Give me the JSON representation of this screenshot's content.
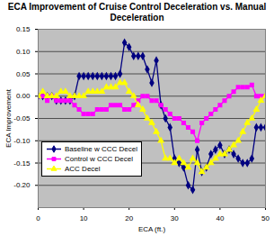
{
  "chart_data": {
    "type": "line",
    "title": "ECA Improvement of Cruise Control Deceleration vs. Manual Deceleration",
    "x_label": "ECA (ft.)",
    "y_label": "ECA Improvement",
    "x": [
      0,
      1,
      2,
      3,
      4,
      5,
      6,
      7,
      8,
      9,
      10,
      11,
      12,
      13,
      14,
      15,
      16,
      17,
      18,
      19,
      20,
      21,
      22,
      23,
      24,
      25,
      26,
      27,
      28,
      29,
      30,
      31,
      32,
      33,
      34,
      35,
      36,
      37,
      38,
      39,
      40,
      41,
      42,
      43,
      44,
      45,
      46,
      47,
      48,
      49,
      50
    ],
    "series": [
      {
        "name": "Baseline w CCC Decel",
        "color": "#000080",
        "marker": "diamond",
        "values": [
          0.0,
          0.0,
          0.0,
          0.0,
          -0.01,
          -0.01,
          -0.01,
          -0.01,
          0.0,
          0.045,
          0.045,
          0.045,
          0.045,
          0.045,
          0.045,
          0.045,
          0.045,
          0.045,
          0.05,
          0.12,
          0.11,
          0.09,
          0.09,
          0.09,
          0.06,
          0.03,
          0.08,
          -0.02,
          -0.05,
          -0.07,
          -0.14,
          -0.15,
          -0.16,
          -0.2,
          -0.21,
          -0.12,
          -0.17,
          -0.16,
          -0.13,
          -0.12,
          -0.11,
          -0.13,
          -0.12,
          -0.13,
          -0.14,
          -0.15,
          -0.15,
          -0.14,
          -0.07,
          -0.07,
          -0.07
        ]
      },
      {
        "name": "Control w CCC Decel",
        "color": "#ff00ff",
        "marker": "square",
        "values": [
          0.0,
          0.0,
          -0.01,
          0.0,
          -0.01,
          -0.01,
          -0.01,
          -0.01,
          -0.02,
          -0.03,
          -0.04,
          -0.04,
          -0.04,
          -0.03,
          -0.03,
          -0.03,
          -0.02,
          -0.02,
          -0.02,
          -0.03,
          -0.03,
          -0.02,
          -0.01,
          0.0,
          0.0,
          -0.01,
          -0.01,
          -0.02,
          -0.03,
          -0.04,
          -0.05,
          -0.05,
          -0.06,
          -0.07,
          -0.08,
          -0.1,
          -0.06,
          -0.05,
          -0.04,
          -0.03,
          -0.02,
          -0.01,
          0.0,
          0.01,
          0.02,
          0.02,
          0.02,
          0.025,
          0.0,
          0.0,
          0.0
        ]
      },
      {
        "name": "ACC Decel",
        "color": "#ffff00",
        "marker": "triangle",
        "values": [
          0.0,
          0.01,
          0.0,
          0.0,
          0.0,
          0.01,
          0.01,
          0.0,
          0.0,
          0.0,
          0.0,
          0.01,
          0.01,
          0.01,
          0.01,
          0.02,
          0.02,
          0.02,
          0.03,
          0.03,
          0.01,
          0.0,
          -0.02,
          -0.03,
          -0.05,
          -0.06,
          -0.08,
          -0.1,
          -0.14,
          -0.14,
          -0.15,
          -0.14,
          -0.15,
          -0.16,
          -0.14,
          -0.15,
          -0.17,
          -0.16,
          -0.15,
          -0.14,
          -0.13,
          -0.13,
          -0.12,
          -0.11,
          -0.1,
          -0.08,
          -0.06,
          -0.05,
          -0.03,
          -0.01,
          0.0
        ]
      }
    ],
    "xlim": [
      0,
      50
    ],
    "xticks": [
      0,
      10,
      20,
      30,
      40,
      50
    ],
    "ylim": [
      -0.25,
      0.15
    ],
    "yticks": [
      0.15,
      {
        "value": 0.1,
        "label": "0.10"
      },
      0.05,
      {
        "value": 0,
        "label": "0.00"
      },
      -0.05,
      {
        "value": -0.1,
        "label": "-0.10"
      },
      -0.15,
      {
        "value": -0.2,
        "label": "-0.20"
      }
    ],
    "grid": true,
    "legend": "lower left"
  }
}
